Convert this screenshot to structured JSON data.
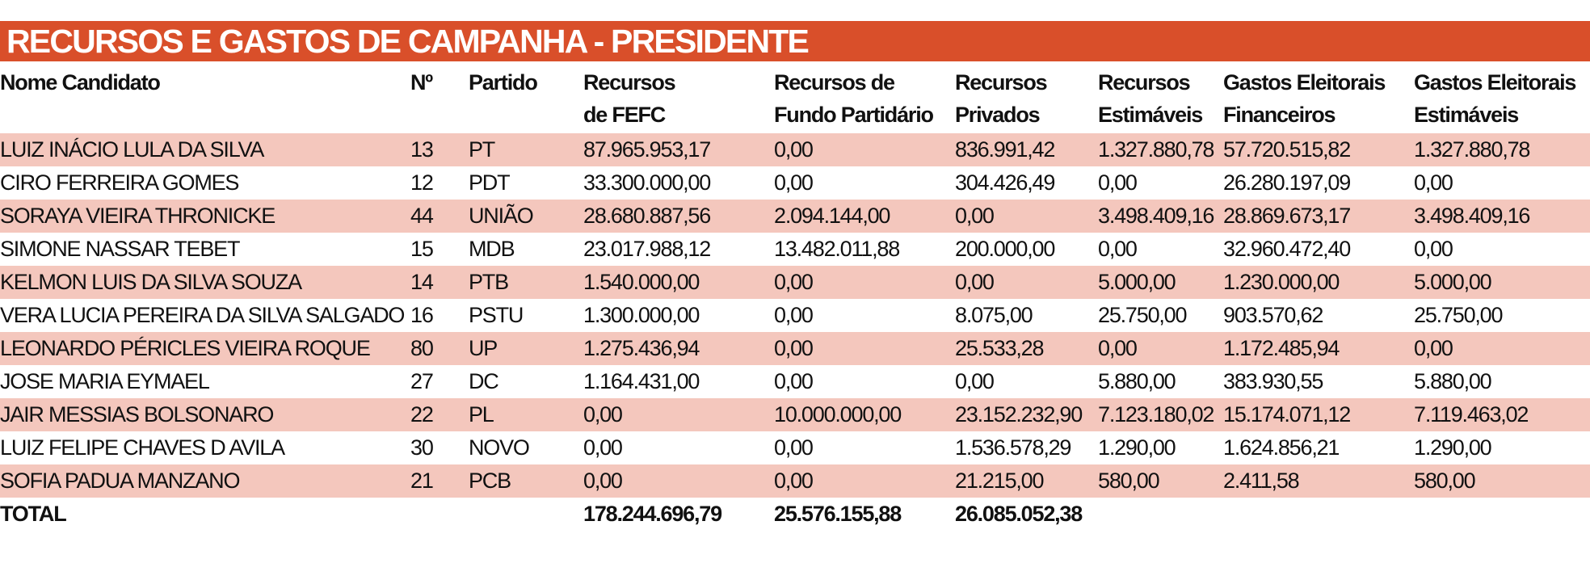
{
  "title": "RECURSOS E GASTOS DE CAMPANHA - PRESIDENTE",
  "colors": {
    "banner": "#d94f2a",
    "row_shade": "#f4c7bd",
    "text": "#111111"
  },
  "headers": [
    [
      "Nome Candidato",
      ""
    ],
    [
      "Nº",
      ""
    ],
    [
      "Partido",
      ""
    ],
    [
      "Recursos",
      "de FEFC"
    ],
    [
      "Recursos de",
      "Fundo Partidário"
    ],
    [
      "Recursos",
      "Privados"
    ],
    [
      "Recursos",
      "Estimáveis"
    ],
    [
      "Gastos Eleitorais",
      "Financeiros"
    ],
    [
      "Gastos Eleitorais",
      "Estimáveis"
    ]
  ],
  "rows": [
    [
      "LUIZ INÁCIO LULA DA SILVA",
      "13",
      "PT",
      "87.965.953,17",
      "0,00",
      "836.991,42",
      "1.327.880,78",
      "57.720.515,82",
      "1.327.880,78"
    ],
    [
      "CIRO FERREIRA GOMES",
      "12",
      "PDT",
      "33.300.000,00",
      "0,00",
      "304.426,49",
      "0,00",
      "26.280.197,09",
      "0,00"
    ],
    [
      "SORAYA VIEIRA THRONICKE",
      "44",
      "UNIÃO",
      "28.680.887,56",
      "2.094.144,00",
      "0,00",
      "3.498.409,16",
      "28.869.673,17",
      "3.498.409,16"
    ],
    [
      "SIMONE NASSAR TEBET",
      "15",
      "MDB",
      "23.017.988,12",
      "13.482.011,88",
      "200.000,00",
      "0,00",
      "32.960.472,40",
      "0,00"
    ],
    [
      "KELMON LUIS DA SILVA SOUZA",
      "14",
      "PTB",
      "1.540.000,00",
      "0,00",
      "0,00",
      "5.000,00",
      "1.230.000,00",
      "5.000,00"
    ],
    [
      "VERA LUCIA PEREIRA DA SILVA SALGADO",
      "16",
      "PSTU",
      "1.300.000,00",
      "0,00",
      "8.075,00",
      "25.750,00",
      "903.570,62",
      "25.750,00"
    ],
    [
      "LEONARDO PÉRICLES VIEIRA ROQUE",
      "80",
      "UP",
      "1.275.436,94",
      "0,00",
      "25.533,28",
      "0,00",
      "1.172.485,94",
      "0,00"
    ],
    [
      "JOSE MARIA EYMAEL",
      "27",
      "DC",
      "1.164.431,00",
      "0,00",
      "0,00",
      "5.880,00",
      "383.930,55",
      "5.880,00"
    ],
    [
      "JAIR MESSIAS BOLSONARO",
      "22",
      "PL",
      "0,00",
      "10.000.000,00",
      "23.152.232,90",
      "7.123.180,02",
      "15.174.071,12",
      "7.119.463,02"
    ],
    [
      "LUIZ FELIPE CHAVES D AVILA",
      "30",
      "NOVO",
      "0,00",
      "0,00",
      "1.536.578,29",
      "1.290,00",
      "1.624.856,21",
      "1.290,00"
    ],
    [
      "SOFIA PADUA MANZANO",
      "21",
      "PCB",
      "0,00",
      "0,00",
      "21.215,00",
      "580,00",
      "2.411,58",
      "580,00"
    ]
  ],
  "total": [
    "TOTAL",
    "",
    "",
    "178.244.696,79",
    "25.576.155,88",
    "26.085.052,38",
    "",
    "",
    ""
  ]
}
